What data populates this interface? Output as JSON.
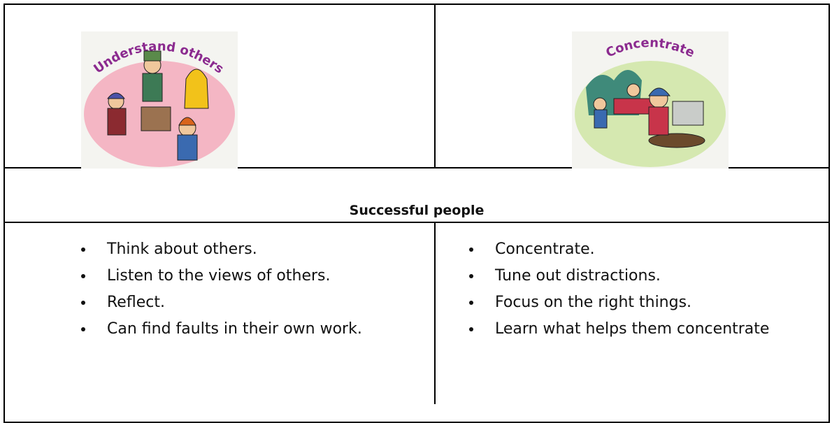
{
  "images": [
    {
      "caption": "Understand others"
    },
    {
      "caption": "Concentrate"
    }
  ],
  "heading": "Successful people",
  "lists": [
    [
      "Think about others.",
      "Listen to the views of others.",
      "Reflect.",
      "Can find faults in their own work."
    ],
    [
      "Concentrate.",
      "Tune out distractions.",
      "Focus on the right things.",
      "Learn what helps them concentrate"
    ]
  ]
}
